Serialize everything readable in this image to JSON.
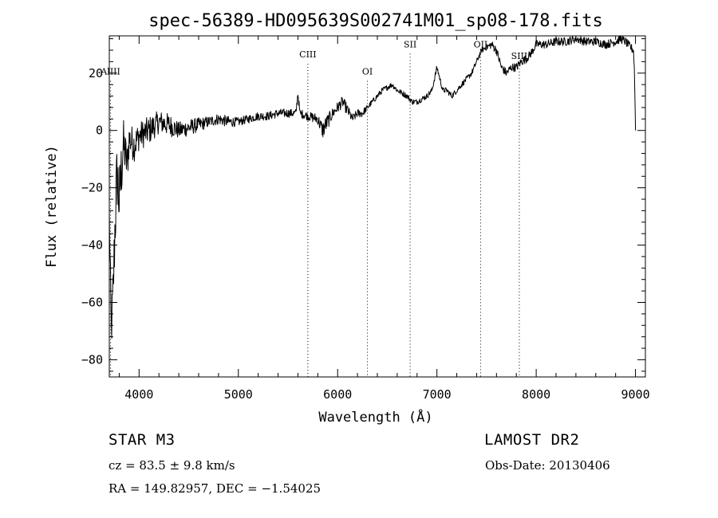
{
  "chart_data": {
    "type": "line",
    "title": "spec-56389-HD095639S002741M01_sp08-178.fits",
    "xlabel": "Wavelength (Å)",
    "ylabel": "Flux (relative)",
    "xlim": [
      3700,
      9100
    ],
    "ylim": [
      -86,
      33
    ],
    "x_ticks": [
      4000,
      5000,
      6000,
      7000,
      8000,
      9000
    ],
    "x_tick_labels": [
      "4000",
      "5000",
      "6000",
      "7000",
      "8000",
      "9000"
    ],
    "y_ticks": [
      20,
      0,
      -20,
      -40,
      -60,
      -80
    ],
    "y_tick_labels": [
      "20",
      "0",
      "−20",
      "−40",
      "−60",
      "−80"
    ],
    "grid": false,
    "series": [
      {
        "x": [
          3700,
          3720,
          3740,
          3760,
          3780,
          3800,
          3820,
          3840,
          3860,
          3880,
          3900,
          3950,
          4000,
          4050,
          4100,
          4200,
          4300,
          4400,
          4500,
          4600,
          4700,
          4800,
          4900,
          5000,
          5100,
          5200,
          5300,
          5400,
          5500,
          5580,
          5600,
          5620,
          5700,
          5800,
          5850,
          5880,
          5950,
          6000,
          6050,
          6100,
          6150,
          6200,
          6250,
          6300,
          6350,
          6400,
          6450,
          6500,
          6550,
          6600,
          6650,
          6700,
          6750,
          6800,
          6850,
          6900,
          6950,
          7000,
          7030,
          7060,
          7100,
          7150,
          7200,
          7250,
          7300,
          7350,
          7400,
          7450,
          7500,
          7550,
          7600,
          7650,
          7700,
          7750,
          7800,
          7850,
          7900,
          7950,
          8000,
          8100,
          8200,
          8300,
          8400,
          8500,
          8600,
          8700,
          8800,
          8850,
          8900,
          8950,
          8980,
          8990,
          9000
        ],
        "y": [
          -30,
          -70,
          -55,
          -30,
          -15,
          -25,
          -15,
          -5,
          -8,
          -12,
          -3,
          -5,
          -2,
          -1,
          0,
          3,
          2,
          0,
          1,
          2,
          3,
          4,
          3,
          3,
          4,
          5,
          5,
          6,
          6,
          6,
          13,
          6,
          5,
          4,
          0,
          2,
          6,
          8,
          10,
          7,
          4,
          6,
          6,
          8,
          10,
          12,
          14,
          15,
          16,
          14,
          13,
          12,
          10,
          10,
          11,
          12,
          14,
          22,
          18,
          14,
          14,
          12,
          14,
          16,
          18,
          20,
          24,
          28,
          29,
          30,
          28,
          22,
          20,
          22,
          22,
          24,
          25,
          27,
          30,
          30,
          31,
          31,
          32,
          31,
          31,
          30,
          31,
          32,
          31,
          29,
          28,
          20,
          0
        ],
        "noise": [
          6,
          8,
          10,
          14,
          14,
          12,
          12,
          10,
          8,
          8,
          6,
          6,
          5,
          5,
          5,
          4,
          4,
          3,
          3,
          2.5,
          2,
          2,
          2,
          1.5,
          1.5,
          1.5,
          1.5,
          1.5,
          1.5,
          1.5,
          1.5,
          1.5,
          1.5,
          2,
          3,
          3,
          2,
          2,
          2,
          2,
          1.5,
          1.5,
          1.5,
          1,
          1,
          1,
          1,
          1,
          1,
          1,
          1,
          1,
          1,
          1,
          1,
          1,
          1,
          1,
          1,
          1,
          1,
          1,
          1,
          1,
          1,
          1,
          1,
          1,
          1,
          1.5,
          1.5,
          1.5,
          1.5,
          1.5,
          1.5,
          1.5,
          1.5,
          1.5,
          1.5,
          1.5,
          1.5,
          1.5,
          1.5,
          1.5,
          1.5,
          1.5,
          1.5,
          1.5,
          1.5,
          1.5,
          1.5,
          1.5,
          0
        ]
      }
    ],
    "lines": [
      {
        "label": "AlIII",
        "x": 3713,
        "label_y": 19.5
      },
      {
        "label": "CIII",
        "x": 5700,
        "label_y": 25.5
      },
      {
        "label": "OI",
        "x": 6300,
        "label_y": 19.5
      },
      {
        "label": "SII",
        "x": 6730,
        "label_y": 29
      },
      {
        "label": "OII",
        "x": 7440,
        "label_y": 29
      },
      {
        "label": "SIII",
        "x": 7830,
        "label_y": 25
      }
    ]
  },
  "info": {
    "object": "STAR    M3",
    "survey": "LAMOST DR2",
    "cz": "cz = 83.5 ± 9.8 km/s",
    "obs_date": "Obs-Date: 20130406",
    "coords": "RA = 149.82957, DEC =  −1.54025"
  }
}
